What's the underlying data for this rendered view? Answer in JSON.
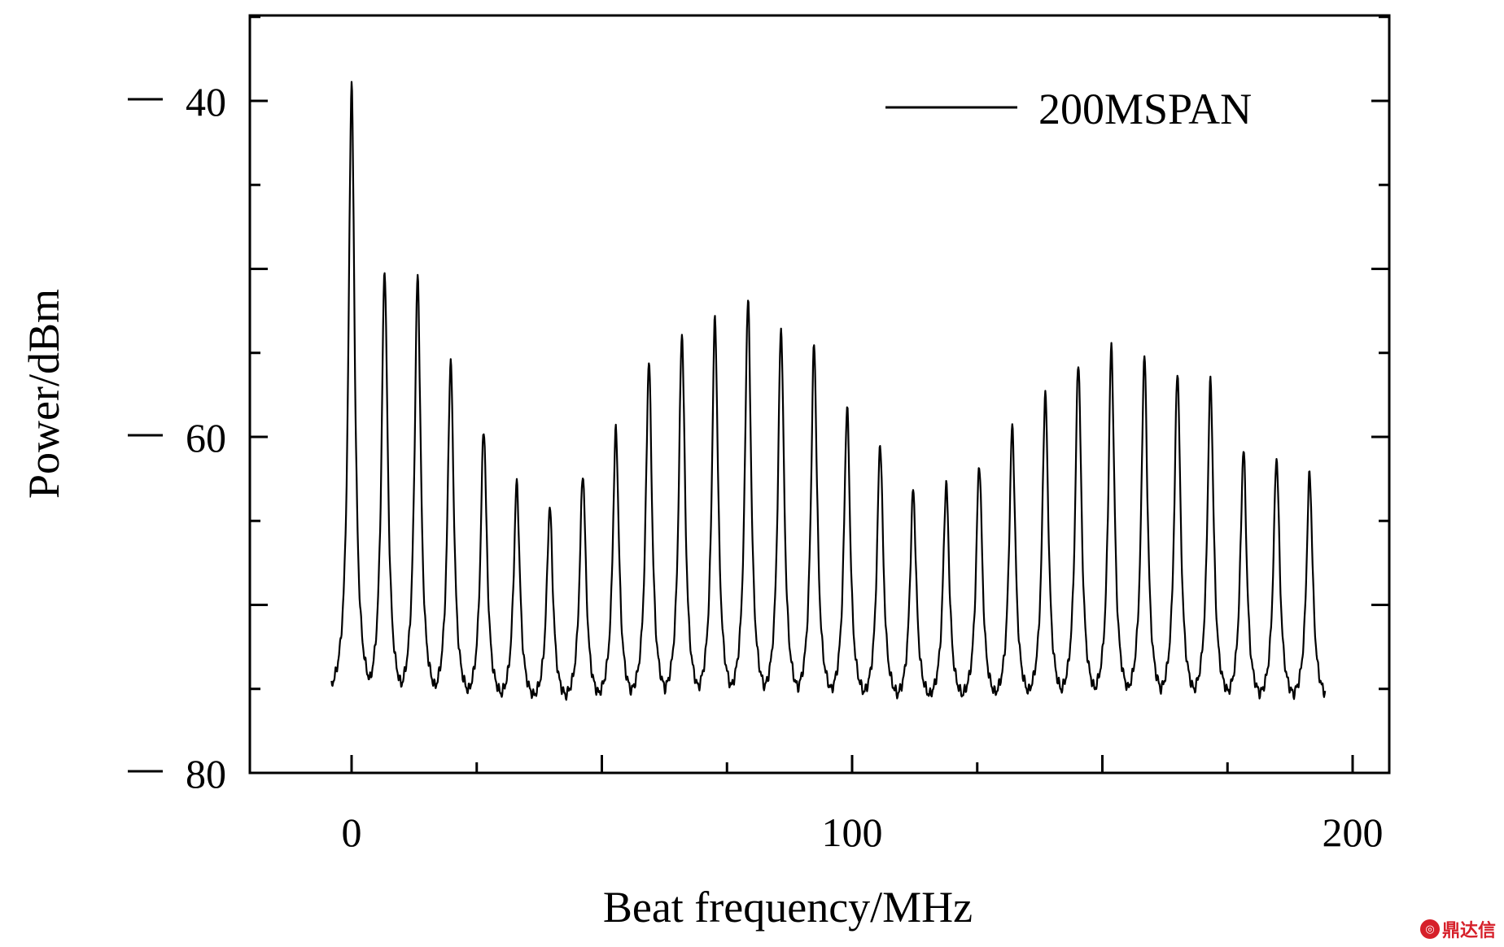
{
  "chart_data": {
    "type": "line",
    "title": "",
    "xlabel": "Beat frequency/MHz",
    "ylabel": "Power/dBm",
    "xlim": [
      -20,
      208
    ],
    "ylim": [
      -80,
      -35
    ],
    "x_ticks": [
      0,
      100,
      200
    ],
    "x_tick_labels": [
      "0",
      "100",
      "200"
    ],
    "y_ticks": [
      -40,
      -60,
      -80
    ],
    "y_tick_labels": [
      "−40",
      "−60",
      "−80"
    ],
    "grid": false,
    "legend_position": "top-right",
    "series": [
      {
        "name": "200MSPAN",
        "color": "#000000",
        "baseline_dbm": -76,
        "peak_width_mhz": 0.75,
        "peaks": [
          {
            "x": 0,
            "y": -39
          },
          {
            "x": 6.6,
            "y": -50
          },
          {
            "x": 13.2,
            "y": -50.5
          },
          {
            "x": 19.8,
            "y": -55.5
          },
          {
            "x": 26.4,
            "y": -59.5
          },
          {
            "x": 33.0,
            "y": -62.8
          },
          {
            "x": 39.6,
            "y": -64.2
          },
          {
            "x": 46.2,
            "y": -62.2
          },
          {
            "x": 52.8,
            "y": -59.6
          },
          {
            "x": 59.4,
            "y": -55.5
          },
          {
            "x": 66.0,
            "y": -53.8
          },
          {
            "x": 72.6,
            "y": -53
          },
          {
            "x": 79.2,
            "y": -51.8
          },
          {
            "x": 85.8,
            "y": -53.5
          },
          {
            "x": 92.4,
            "y": -54.6
          },
          {
            "x": 99.0,
            "y": -58.3
          },
          {
            "x": 105.6,
            "y": -60.4
          },
          {
            "x": 112.2,
            "y": -63.2
          },
          {
            "x": 118.8,
            "y": -62.8
          },
          {
            "x": 125.4,
            "y": -61.6
          },
          {
            "x": 132.0,
            "y": -59.4
          },
          {
            "x": 138.6,
            "y": -57.4
          },
          {
            "x": 145.2,
            "y": -55.5
          },
          {
            "x": 151.8,
            "y": -54.7
          },
          {
            "x": 158.4,
            "y": -55.2
          },
          {
            "x": 165.0,
            "y": -56.1
          },
          {
            "x": 171.6,
            "y": -56.7
          },
          {
            "x": 178.2,
            "y": -60.8
          },
          {
            "x": 184.8,
            "y": -61.2
          },
          {
            "x": 191.4,
            "y": -62.2
          }
        ]
      }
    ]
  },
  "watermark": {
    "text": "鼎达信",
    "color": "#d6202a"
  }
}
